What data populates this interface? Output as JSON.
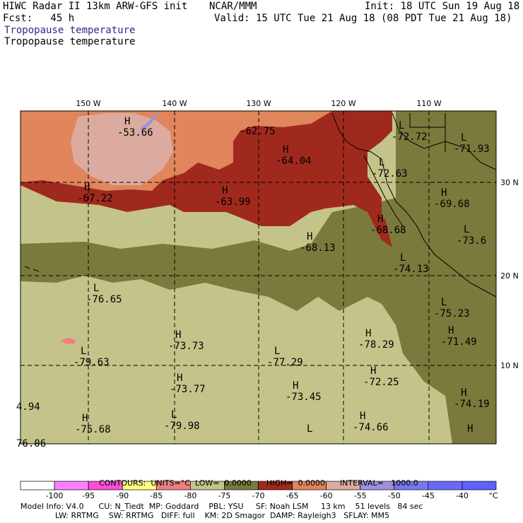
{
  "header": {
    "left_line1": "HIWC Radar II 13km ARW-GFS init",
    "center_line1": "NCAR/MMM",
    "right_line1": "Init: 18 UTC Sun 19 Aug 18",
    "left_line2": "Fcst:   45 h",
    "right_line2": "Valid: 15 UTC Tue 21 Aug 18 (08 PDT Tue 21 Aug 18)",
    "field_shaded": "Tropopause temperature",
    "field_contour": "Tropopause temperature"
  },
  "map": {
    "lon_labels": [
      "150 W",
      "140 W",
      "130 W",
      "120 W",
      "110 W"
    ],
    "lat_labels": [
      "30 N",
      "20 N",
      "10 N"
    ],
    "extrema": [
      {
        "type": "H",
        "value": "-53.66"
      },
      {
        "type": "",
        "value": "-62.75"
      },
      {
        "type": "L",
        "value": "-72.72"
      },
      {
        "type": "L",
        "value": "-71.93"
      },
      {
        "type": "H",
        "value": "-64.04"
      },
      {
        "type": "L",
        "value": "-72.63"
      },
      {
        "type": "H",
        "value": "-67.22"
      },
      {
        "type": "H",
        "value": "-63.99"
      },
      {
        "type": "H",
        "value": "-69.68"
      },
      {
        "type": "H",
        "value": "-68.68"
      },
      {
        "type": "L",
        "value": "-73.6"
      },
      {
        "type": "H",
        "value": "-68.13"
      },
      {
        "type": "L",
        "value": "-74.13"
      },
      {
        "type": "L",
        "value": "-76.65"
      },
      {
        "type": "L",
        "value": "-75.23"
      },
      {
        "type": "H",
        "value": "-73.73"
      },
      {
        "type": "H",
        "value": "-78.29"
      },
      {
        "type": "H",
        "value": "-71.49"
      },
      {
        "type": "L",
        "value": "-79.63"
      },
      {
        "type": "L",
        "value": "-77.29"
      },
      {
        "type": "H",
        "value": "-72.25"
      },
      {
        "type": "H",
        "value": "-73.77"
      },
      {
        "type": "H",
        "value": "-73.45"
      },
      {
        "type": "H",
        "value": "-74.19"
      },
      {
        "type": "",
        "value": "4.94"
      },
      {
        "type": "H",
        "value": "-75.68"
      },
      {
        "type": "L",
        "value": "-79.98"
      },
      {
        "type": "H",
        "value": "-74.66"
      },
      {
        "type": "H",
        "value": ""
      },
      {
        "type": "L",
        "value": ""
      },
      {
        "type": "",
        "value": "76.06"
      }
    ]
  },
  "contour_info": {
    "contours": "CONTOURS:",
    "units": "UNITS=°C",
    "low": "LOW=  0.0000",
    "high": "HIGH=  0.0000",
    "interval": "INTERVAL=   1000.0"
  },
  "colorbar": {
    "ticks": [
      "-100",
      "-95",
      "-90",
      "-85",
      "-80",
      "-75",
      "-70",
      "-65",
      "-60",
      "-55",
      "-50",
      "-45",
      "-40"
    ],
    "unit": "°C",
    "colors": [
      "#ffffff",
      "#ff80ff",
      "#ff4ed8",
      "#ffff80",
      "#f08080",
      "#c4c48a",
      "#7a7a3c",
      "#a0291e",
      "#e0855c",
      "#dcaba0",
      "#a090e0",
      "#7878f0",
      "#6a6af8",
      "#6060ff"
    ]
  },
  "footer": {
    "line1": "Model Info: V4.0      CU: N_Tiedt  MP: Goddard    PBL: YSU     SF: Noah LSM     13 km    51 levels   84 sec",
    "line2": "              LW: RRTMG    SW: RRTMG   DIFF: full    KM: 2D Smagor  DAMP: Rayleigh3   SFLAY: MM5"
  }
}
